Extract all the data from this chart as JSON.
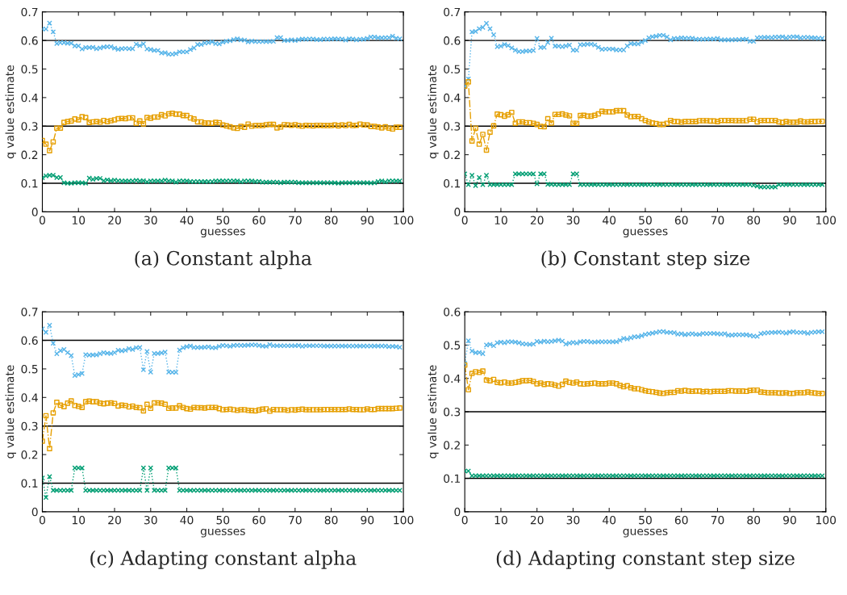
{
  "chart_data": [
    {
      "type": "line",
      "title": "(a) Constant alpha",
      "xlabel": "guesses",
      "ylabel": "q value estimate",
      "xlim": [
        0,
        100
      ],
      "ylim": [
        0,
        0.7
      ],
      "xticks": [
        0,
        10,
        20,
        30,
        40,
        50,
        60,
        70,
        80,
        90,
        100
      ],
      "yticks": [
        0,
        0.1,
        0.2,
        0.3,
        0.4,
        0.5,
        0.6,
        0.7
      ],
      "grid": false,
      "legend": false,
      "x": [
        0,
        1,
        2,
        3,
        4,
        5,
        6,
        7,
        8,
        9,
        10,
        11,
        12,
        13,
        14,
        15,
        16,
        17,
        18,
        19,
        20,
        21,
        22,
        23,
        24,
        25,
        26,
        27,
        28,
        29,
        30,
        31,
        32,
        33,
        34,
        35,
        36,
        37,
        38,
        39,
        40,
        41,
        42,
        43,
        44,
        45,
        46,
        47,
        48,
        49,
        50,
        51,
        52,
        53,
        54,
        55,
        56,
        57,
        58,
        59,
        60,
        61,
        62,
        63,
        64,
        65,
        66,
        67,
        68,
        69,
        70,
        71,
        72,
        73,
        74,
        75,
        76,
        77,
        78,
        79,
        80,
        81,
        82,
        83,
        84,
        85,
        86,
        87,
        88,
        89,
        90,
        91,
        92,
        93,
        94,
        95,
        96,
        97,
        98,
        99
      ],
      "ref_lines": [
        {
          "axis": "y",
          "value": 0.6,
          "color": "#000000"
        },
        {
          "axis": "y",
          "value": 0.3,
          "color": "#000000"
        },
        {
          "axis": "y",
          "value": 0.1,
          "color": "#000000"
        }
      ],
      "series": [
        {
          "color": "#56b4e9",
          "marker": "cross",
          "line_style": "dotted",
          "values": [
            0.64,
            0.64,
            0.661,
            0.63,
            0.589,
            0.592,
            0.592,
            0.59,
            0.59,
            0.581,
            0.581,
            0.57,
            0.575,
            0.575,
            0.576,
            0.571,
            0.574,
            0.577,
            0.578,
            0.578,
            0.573,
            0.569,
            0.571,
            0.572,
            0.571,
            0.571,
            0.587,
            0.582,
            0.588,
            0.57,
            0.568,
            0.565,
            0.565,
            0.556,
            0.557,
            0.552,
            0.552,
            0.554,
            0.56,
            0.56,
            0.56,
            0.568,
            0.574,
            0.586,
            0.586,
            0.591,
            0.592,
            0.595,
            0.589,
            0.588,
            0.594,
            0.597,
            0.599,
            0.603,
            0.606,
            0.602,
            0.601,
            0.595,
            0.598,
            0.596,
            0.596,
            0.596,
            0.596,
            0.596,
            0.597,
            0.61,
            0.61,
            0.6,
            0.6,
            0.602,
            0.6,
            0.603,
            0.605,
            0.604,
            0.605,
            0.605,
            0.603,
            0.603,
            0.605,
            0.604,
            0.605,
            0.606,
            0.605,
            0.605,
            0.601,
            0.606,
            0.605,
            0.602,
            0.604,
            0.604,
            0.607,
            0.612,
            0.612,
            0.609,
            0.609,
            0.61,
            0.61,
            0.615,
            0.608,
            0.606
          ]
        },
        {
          "color": "#e69f00",
          "marker": "square",
          "line_style": "dashed",
          "values": [
            0.25,
            0.237,
            0.214,
            0.245,
            0.293,
            0.293,
            0.313,
            0.316,
            0.318,
            0.325,
            0.322,
            0.333,
            0.33,
            0.313,
            0.315,
            0.316,
            0.314,
            0.32,
            0.316,
            0.319,
            0.322,
            0.326,
            0.327,
            0.326,
            0.329,
            0.329,
            0.31,
            0.318,
            0.308,
            0.33,
            0.328,
            0.332,
            0.332,
            0.34,
            0.336,
            0.343,
            0.345,
            0.342,
            0.342,
            0.337,
            0.337,
            0.329,
            0.325,
            0.315,
            0.315,
            0.311,
            0.311,
            0.31,
            0.313,
            0.312,
            0.304,
            0.301,
            0.298,
            0.294,
            0.292,
            0.299,
            0.296,
            0.307,
            0.3,
            0.302,
            0.302,
            0.302,
            0.305,
            0.306,
            0.306,
            0.294,
            0.297,
            0.305,
            0.304,
            0.303,
            0.305,
            0.302,
            0.3,
            0.303,
            0.302,
            0.301,
            0.303,
            0.303,
            0.302,
            0.302,
            0.302,
            0.304,
            0.301,
            0.304,
            0.302,
            0.306,
            0.302,
            0.303,
            0.307,
            0.304,
            0.304,
            0.299,
            0.299,
            0.297,
            0.294,
            0.298,
            0.293,
            0.29,
            0.296,
            0.296
          ]
        },
        {
          "color": "#009e73",
          "marker": "cross",
          "line_style": "dotted",
          "values": [
            0.119,
            0.126,
            0.128,
            0.128,
            0.12,
            0.12,
            0.102,
            0.1,
            0.1,
            0.102,
            0.102,
            0.102,
            0.1,
            0.118,
            0.114,
            0.117,
            0.117,
            0.109,
            0.112,
            0.109,
            0.111,
            0.109,
            0.108,
            0.108,
            0.108,
            0.108,
            0.11,
            0.108,
            0.109,
            0.105,
            0.108,
            0.108,
            0.108,
            0.108,
            0.111,
            0.108,
            0.108,
            0.104,
            0.108,
            0.108,
            0.108,
            0.106,
            0.106,
            0.106,
            0.106,
            0.106,
            0.106,
            0.106,
            0.108,
            0.108,
            0.108,
            0.108,
            0.108,
            0.108,
            0.108,
            0.105,
            0.108,
            0.108,
            0.108,
            0.106,
            0.107,
            0.104,
            0.104,
            0.104,
            0.104,
            0.104,
            0.102,
            0.104,
            0.104,
            0.104,
            0.104,
            0.102,
            0.102,
            0.102,
            0.102,
            0.102,
            0.102,
            0.102,
            0.102,
            0.102,
            0.102,
            0.102,
            0.1,
            0.102,
            0.102,
            0.102,
            0.102,
            0.102,
            0.102,
            0.102,
            0.102,
            0.101,
            0.102,
            0.106,
            0.108,
            0.105,
            0.108,
            0.108,
            0.108,
            0.108
          ]
        }
      ]
    },
    {
      "type": "line",
      "title": "(b) Constant step size",
      "xlabel": "guesses",
      "ylabel": "q value estimate",
      "xlim": [
        0,
        100
      ],
      "ylim": [
        0,
        0.7
      ],
      "xticks": [
        0,
        10,
        20,
        30,
        40,
        50,
        60,
        70,
        80,
        90,
        100
      ],
      "yticks": [
        0,
        0.1,
        0.2,
        0.3,
        0.4,
        0.5,
        0.6,
        0.7
      ],
      "grid": false,
      "legend": false,
      "x": [
        0,
        1,
        2,
        3,
        4,
        5,
        6,
        7,
        8,
        9,
        10,
        11,
        12,
        13,
        14,
        15,
        16,
        17,
        18,
        19,
        20,
        21,
        22,
        23,
        24,
        25,
        26,
        27,
        28,
        29,
        30,
        31,
        32,
        33,
        34,
        35,
        36,
        37,
        38,
        39,
        40,
        41,
        42,
        43,
        44,
        45,
        46,
        47,
        48,
        49,
        50,
        51,
        52,
        53,
        54,
        55,
        56,
        57,
        58,
        59,
        60,
        61,
        62,
        63,
        64,
        65,
        66,
        67,
        68,
        69,
        70,
        71,
        72,
        73,
        74,
        75,
        76,
        77,
        78,
        79,
        80,
        81,
        82,
        83,
        84,
        85,
        86,
        87,
        88,
        89,
        90,
        91,
        92,
        93,
        94,
        95,
        96,
        97,
        98,
        99
      ],
      "ref_lines": [
        {
          "axis": "y",
          "value": 0.6,
          "color": "#000000"
        },
        {
          "axis": "y",
          "value": 0.3,
          "color": "#000000"
        },
        {
          "axis": "y",
          "value": 0.1,
          "color": "#000000"
        }
      ],
      "series": [
        {
          "color": "#56b4e9",
          "marker": "cross",
          "line_style": "dotted",
          "values": [
            0.44,
            0.465,
            0.63,
            0.632,
            0.641,
            0.646,
            0.66,
            0.641,
            0.62,
            0.578,
            0.58,
            0.586,
            0.582,
            0.574,
            0.566,
            0.561,
            0.561,
            0.563,
            0.563,
            0.565,
            0.607,
            0.575,
            0.576,
            0.593,
            0.608,
            0.58,
            0.58,
            0.578,
            0.581,
            0.584,
            0.566,
            0.566,
            0.585,
            0.585,
            0.587,
            0.587,
            0.584,
            0.576,
            0.569,
            0.57,
            0.57,
            0.57,
            0.567,
            0.567,
            0.567,
            0.581,
            0.589,
            0.588,
            0.588,
            0.594,
            0.6,
            0.609,
            0.613,
            0.615,
            0.618,
            0.618,
            0.612,
            0.602,
            0.607,
            0.607,
            0.609,
            0.608,
            0.608,
            0.608,
            0.604,
            0.604,
            0.604,
            0.605,
            0.605,
            0.605,
            0.607,
            0.602,
            0.602,
            0.602,
            0.602,
            0.603,
            0.603,
            0.604,
            0.604,
            0.597,
            0.597,
            0.609,
            0.611,
            0.611,
            0.611,
            0.61,
            0.612,
            0.612,
            0.613,
            0.609,
            0.612,
            0.613,
            0.613,
            0.609,
            0.611,
            0.611,
            0.61,
            0.609,
            0.608,
            0.608
          ]
        },
        {
          "color": "#e69f00",
          "marker": "square",
          "line_style": "dashed",
          "values": [
            0.44,
            0.455,
            0.248,
            0.293,
            0.237,
            0.271,
            0.216,
            0.279,
            0.301,
            0.342,
            0.34,
            0.335,
            0.34,
            0.348,
            0.31,
            0.315,
            0.315,
            0.312,
            0.312,
            0.31,
            0.306,
            0.299,
            0.298,
            0.326,
            0.311,
            0.341,
            0.341,
            0.343,
            0.339,
            0.336,
            0.31,
            0.31,
            0.337,
            0.338,
            0.335,
            0.335,
            0.338,
            0.343,
            0.352,
            0.35,
            0.35,
            0.35,
            0.354,
            0.354,
            0.354,
            0.339,
            0.333,
            0.334,
            0.334,
            0.326,
            0.32,
            0.315,
            0.311,
            0.309,
            0.306,
            0.306,
            0.31,
            0.32,
            0.316,
            0.316,
            0.314,
            0.316,
            0.316,
            0.316,
            0.316,
            0.319,
            0.319,
            0.319,
            0.318,
            0.318,
            0.316,
            0.32,
            0.32,
            0.32,
            0.32,
            0.319,
            0.319,
            0.319,
            0.319,
            0.324,
            0.324,
            0.315,
            0.32,
            0.32,
            0.32,
            0.32,
            0.32,
            0.315,
            0.313,
            0.316,
            0.314,
            0.314,
            0.314,
            0.318,
            0.315,
            0.315,
            0.316,
            0.316,
            0.317,
            0.317
          ]
        },
        {
          "color": "#009e73",
          "marker": "cross",
          "line_style": "dotted",
          "values": [
            0.133,
            0.095,
            0.128,
            0.092,
            0.12,
            0.095,
            0.128,
            0.095,
            0.095,
            0.095,
            0.095,
            0.095,
            0.095,
            0.095,
            0.133,
            0.133,
            0.133,
            0.133,
            0.133,
            0.133,
            0.098,
            0.133,
            0.133,
            0.096,
            0.096,
            0.095,
            0.095,
            0.095,
            0.095,
            0.095,
            0.133,
            0.133,
            0.095,
            0.095,
            0.095,
            0.095,
            0.095,
            0.095,
            0.095,
            0.095,
            0.095,
            0.095,
            0.095,
            0.095,
            0.095,
            0.095,
            0.095,
            0.095,
            0.095,
            0.095,
            0.095,
            0.095,
            0.095,
            0.095,
            0.095,
            0.095,
            0.095,
            0.095,
            0.095,
            0.095,
            0.095,
            0.095,
            0.095,
            0.095,
            0.095,
            0.095,
            0.095,
            0.095,
            0.095,
            0.095,
            0.095,
            0.095,
            0.095,
            0.095,
            0.095,
            0.095,
            0.095,
            0.095,
            0.095,
            0.095,
            0.093,
            0.09,
            0.087,
            0.087,
            0.087,
            0.087,
            0.087,
            0.095,
            0.095,
            0.095,
            0.095,
            0.095,
            0.095,
            0.095,
            0.095,
            0.095,
            0.095,
            0.095,
            0.095,
            0.095
          ]
        }
      ]
    },
    {
      "type": "line",
      "title": "(c) Adapting constant alpha",
      "xlabel": "guesses",
      "ylabel": "q value estimate",
      "xlim": [
        0,
        100
      ],
      "ylim": [
        0,
        0.7
      ],
      "xticks": [
        0,
        10,
        20,
        30,
        40,
        50,
        60,
        70,
        80,
        90,
        100
      ],
      "yticks": [
        0,
        0.1,
        0.2,
        0.3,
        0.4,
        0.5,
        0.6,
        0.7
      ],
      "grid": false,
      "legend": false,
      "x": [
        0,
        1,
        2,
        3,
        4,
        5,
        6,
        7,
        8,
        9,
        10,
        11,
        12,
        13,
        14,
        15,
        16,
        17,
        18,
        19,
        20,
        21,
        22,
        23,
        24,
        25,
        26,
        27,
        28,
        29,
        30,
        31,
        32,
        33,
        34,
        35,
        36,
        37,
        38,
        39,
        40,
        41,
        42,
        43,
        44,
        45,
        46,
        47,
        48,
        49,
        50,
        51,
        52,
        53,
        54,
        55,
        56,
        57,
        58,
        59,
        60,
        61,
        62,
        63,
        64,
        65,
        66,
        67,
        68,
        69,
        70,
        71,
        72,
        73,
        74,
        75,
        76,
        77,
        78,
        79,
        80,
        81,
        82,
        83,
        84,
        85,
        86,
        87,
        88,
        89,
        90,
        91,
        92,
        93,
        94,
        95,
        96,
        97,
        98,
        99
      ],
      "ref_lines": [
        {
          "axis": "y",
          "value": 0.6,
          "color": "#000000"
        },
        {
          "axis": "y",
          "value": 0.3,
          "color": "#000000"
        },
        {
          "axis": "y",
          "value": 0.1,
          "color": "#000000"
        }
      ],
      "series": [
        {
          "color": "#56b4e9",
          "marker": "cross",
          "line_style": "dotted",
          "values": [
            0.64,
            0.628,
            0.653,
            0.59,
            0.553,
            0.564,
            0.568,
            0.557,
            0.547,
            0.477,
            0.48,
            0.484,
            0.55,
            0.548,
            0.549,
            0.549,
            0.553,
            0.557,
            0.555,
            0.554,
            0.557,
            0.565,
            0.563,
            0.565,
            0.571,
            0.568,
            0.574,
            0.575,
            0.497,
            0.561,
            0.489,
            0.554,
            0.554,
            0.556,
            0.559,
            0.489,
            0.488,
            0.488,
            0.566,
            0.574,
            0.578,
            0.58,
            0.575,
            0.575,
            0.575,
            0.576,
            0.577,
            0.574,
            0.574,
            0.579,
            0.582,
            0.581,
            0.579,
            0.582,
            0.583,
            0.582,
            0.582,
            0.583,
            0.584,
            0.584,
            0.582,
            0.58,
            0.579,
            0.585,
            0.581,
            0.581,
            0.581,
            0.581,
            0.581,
            0.581,
            0.581,
            0.582,
            0.579,
            0.581,
            0.581,
            0.581,
            0.581,
            0.581,
            0.58,
            0.58,
            0.58,
            0.58,
            0.58,
            0.58,
            0.58,
            0.58,
            0.58,
            0.58,
            0.58,
            0.58,
            0.58,
            0.58,
            0.58,
            0.58,
            0.58,
            0.58,
            0.578,
            0.579,
            0.578,
            0.576
          ]
        },
        {
          "color": "#e69f00",
          "marker": "square",
          "line_style": "dashed",
          "values": [
            0.247,
            0.336,
            0.221,
            0.346,
            0.383,
            0.373,
            0.368,
            0.38,
            0.388,
            0.372,
            0.369,
            0.365,
            0.385,
            0.387,
            0.385,
            0.385,
            0.38,
            0.378,
            0.38,
            0.381,
            0.379,
            0.37,
            0.373,
            0.372,
            0.367,
            0.37,
            0.365,
            0.364,
            0.353,
            0.376,
            0.362,
            0.381,
            0.381,
            0.38,
            0.376,
            0.362,
            0.363,
            0.363,
            0.371,
            0.365,
            0.361,
            0.359,
            0.365,
            0.364,
            0.364,
            0.363,
            0.365,
            0.365,
            0.365,
            0.361,
            0.357,
            0.358,
            0.359,
            0.357,
            0.355,
            0.357,
            0.357,
            0.355,
            0.354,
            0.353,
            0.356,
            0.359,
            0.36,
            0.352,
            0.358,
            0.357,
            0.357,
            0.357,
            0.355,
            0.357,
            0.356,
            0.358,
            0.359,
            0.357,
            0.357,
            0.357,
            0.357,
            0.357,
            0.358,
            0.358,
            0.358,
            0.358,
            0.358,
            0.358,
            0.358,
            0.36,
            0.358,
            0.358,
            0.357,
            0.357,
            0.36,
            0.358,
            0.358,
            0.361,
            0.361,
            0.361,
            0.361,
            0.361,
            0.362,
            0.363
          ]
        },
        {
          "color": "#009e73",
          "marker": "cross",
          "line_style": "dotted",
          "values": [
            0.118,
            0.05,
            0.123,
            0.075,
            0.075,
            0.075,
            0.075,
            0.075,
            0.075,
            0.153,
            0.153,
            0.153,
            0.075,
            0.075,
            0.075,
            0.075,
            0.075,
            0.075,
            0.075,
            0.075,
            0.075,
            0.075,
            0.075,
            0.075,
            0.075,
            0.075,
            0.075,
            0.075,
            0.153,
            0.075,
            0.153,
            0.075,
            0.075,
            0.075,
            0.075,
            0.153,
            0.153,
            0.153,
            0.075,
            0.075,
            0.075,
            0.075,
            0.075,
            0.075,
            0.075,
            0.075,
            0.075,
            0.075,
            0.075,
            0.075,
            0.075,
            0.075,
            0.075,
            0.075,
            0.075,
            0.075,
            0.075,
            0.075,
            0.075,
            0.075,
            0.075,
            0.075,
            0.075,
            0.075,
            0.075,
            0.075,
            0.075,
            0.075,
            0.075,
            0.075,
            0.075,
            0.075,
            0.075,
            0.075,
            0.075,
            0.075,
            0.075,
            0.075,
            0.075,
            0.075,
            0.075,
            0.075,
            0.075,
            0.075,
            0.075,
            0.075,
            0.075,
            0.075,
            0.075,
            0.075,
            0.075,
            0.075,
            0.075,
            0.075,
            0.075,
            0.075,
            0.075,
            0.075,
            0.075,
            0.075
          ]
        }
      ]
    },
    {
      "type": "line",
      "title": "(d) Adapting constant step size",
      "xlabel": "guesses",
      "ylabel": "q value estimate",
      "xlim": [
        0,
        100
      ],
      "ylim": [
        0,
        0.6
      ],
      "xticks": [
        0,
        10,
        20,
        30,
        40,
        50,
        60,
        70,
        80,
        90,
        100
      ],
      "yticks": [
        0,
        0.1,
        0.2,
        0.3,
        0.4,
        0.5,
        0.6
      ],
      "grid": false,
      "legend": false,
      "x": [
        0,
        1,
        2,
        3,
        4,
        5,
        6,
        7,
        8,
        9,
        10,
        11,
        12,
        13,
        14,
        15,
        16,
        17,
        18,
        19,
        20,
        21,
        22,
        23,
        24,
        25,
        26,
        27,
        28,
        29,
        30,
        31,
        32,
        33,
        34,
        35,
        36,
        37,
        38,
        39,
        40,
        41,
        42,
        43,
        44,
        45,
        46,
        47,
        48,
        49,
        50,
        51,
        52,
        53,
        54,
        55,
        56,
        57,
        58,
        59,
        60,
        61,
        62,
        63,
        64,
        65,
        66,
        67,
        68,
        69,
        70,
        71,
        72,
        73,
        74,
        75,
        76,
        77,
        78,
        79,
        80,
        81,
        82,
        83,
        84,
        85,
        86,
        87,
        88,
        89,
        90,
        91,
        92,
        93,
        94,
        95,
        96,
        97,
        98,
        99
      ],
      "ref_lines": [
        {
          "axis": "y",
          "value": 0.3,
          "color": "#000000"
        },
        {
          "axis": "y",
          "value": 0.1,
          "color": "#000000"
        }
      ],
      "series": [
        {
          "color": "#56b4e9",
          "marker": "cross",
          "line_style": "dotted",
          "values": [
            0.445,
            0.513,
            0.482,
            0.477,
            0.478,
            0.474,
            0.5,
            0.502,
            0.498,
            0.507,
            0.509,
            0.507,
            0.51,
            0.51,
            0.509,
            0.507,
            0.504,
            0.503,
            0.502,
            0.503,
            0.511,
            0.509,
            0.512,
            0.51,
            0.511,
            0.513,
            0.515,
            0.512,
            0.503,
            0.506,
            0.508,
            0.506,
            0.51,
            0.511,
            0.511,
            0.509,
            0.509,
            0.51,
            0.51,
            0.51,
            0.51,
            0.51,
            0.51,
            0.514,
            0.52,
            0.518,
            0.522,
            0.525,
            0.525,
            0.528,
            0.532,
            0.534,
            0.536,
            0.538,
            0.54,
            0.541,
            0.538,
            0.538,
            0.537,
            0.533,
            0.534,
            0.531,
            0.533,
            0.534,
            0.532,
            0.532,
            0.535,
            0.534,
            0.535,
            0.535,
            0.534,
            0.533,
            0.534,
            0.53,
            0.53,
            0.531,
            0.531,
            0.531,
            0.531,
            0.529,
            0.527,
            0.526,
            0.534,
            0.536,
            0.537,
            0.538,
            0.538,
            0.539,
            0.538,
            0.536,
            0.539,
            0.54,
            0.538,
            0.538,
            0.538,
            0.535,
            0.538,
            0.539,
            0.54,
            0.54
          ]
        },
        {
          "color": "#e69f00",
          "marker": "square",
          "line_style": "dashed",
          "values": [
            0.44,
            0.366,
            0.415,
            0.42,
            0.418,
            0.422,
            0.395,
            0.393,
            0.397,
            0.388,
            0.387,
            0.389,
            0.386,
            0.386,
            0.388,
            0.39,
            0.393,
            0.393,
            0.394,
            0.391,
            0.384,
            0.386,
            0.382,
            0.384,
            0.383,
            0.38,
            0.377,
            0.382,
            0.392,
            0.388,
            0.386,
            0.389,
            0.384,
            0.383,
            0.384,
            0.385,
            0.386,
            0.384,
            0.384,
            0.384,
            0.386,
            0.386,
            0.384,
            0.379,
            0.375,
            0.378,
            0.372,
            0.369,
            0.369,
            0.366,
            0.363,
            0.361,
            0.36,
            0.358,
            0.356,
            0.355,
            0.357,
            0.358,
            0.358,
            0.363,
            0.362,
            0.364,
            0.362,
            0.361,
            0.362,
            0.362,
            0.36,
            0.361,
            0.36,
            0.361,
            0.361,
            0.361,
            0.361,
            0.363,
            0.363,
            0.362,
            0.362,
            0.362,
            0.361,
            0.364,
            0.365,
            0.365,
            0.359,
            0.358,
            0.357,
            0.357,
            0.357,
            0.356,
            0.356,
            0.357,
            0.355,
            0.355,
            0.357,
            0.357,
            0.357,
            0.359,
            0.357,
            0.356,
            0.355,
            0.355
          ]
        },
        {
          "color": "#009e73",
          "marker": "cross",
          "line_style": "dotted",
          "values": [
            0.122,
            0.122,
            0.108,
            0.108,
            0.108,
            0.108,
            0.108,
            0.108,
            0.108,
            0.108,
            0.108,
            0.108,
            0.108,
            0.108,
            0.108,
            0.108,
            0.108,
            0.108,
            0.108,
            0.108,
            0.108,
            0.108,
            0.108,
            0.108,
            0.108,
            0.108,
            0.108,
            0.108,
            0.108,
            0.108,
            0.108,
            0.108,
            0.108,
            0.108,
            0.108,
            0.108,
            0.108,
            0.108,
            0.108,
            0.108,
            0.108,
            0.108,
            0.108,
            0.108,
            0.108,
            0.108,
            0.108,
            0.108,
            0.108,
            0.108,
            0.108,
            0.108,
            0.108,
            0.108,
            0.108,
            0.108,
            0.108,
            0.108,
            0.108,
            0.108,
            0.108,
            0.108,
            0.108,
            0.108,
            0.108,
            0.108,
            0.108,
            0.108,
            0.108,
            0.108,
            0.108,
            0.108,
            0.108,
            0.108,
            0.108,
            0.108,
            0.108,
            0.108,
            0.108,
            0.108,
            0.108,
            0.108,
            0.108,
            0.108,
            0.108,
            0.108,
            0.108,
            0.108,
            0.108,
            0.108,
            0.108,
            0.108,
            0.108,
            0.108,
            0.108,
            0.108,
            0.108,
            0.108,
            0.108,
            0.108
          ]
        }
      ]
    }
  ]
}
